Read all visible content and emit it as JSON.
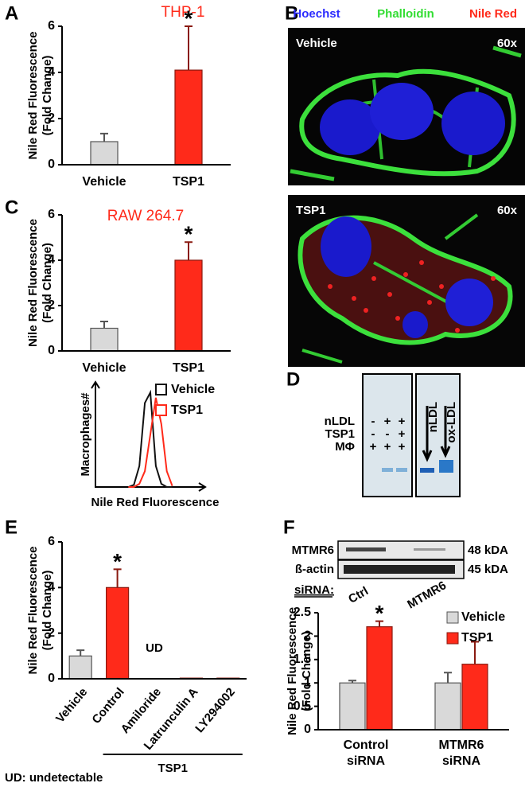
{
  "chart_data": [
    {
      "type": "bar",
      "panel": "A",
      "title": "THP-1",
      "title_color": "#ff2a1a",
      "ylabel": [
        "Nile Red Fluorescence",
        "(Fold Change)"
      ],
      "categories": [
        "Vehicle",
        "TSP1"
      ],
      "values": [
        1,
        4.1
      ],
      "errors": [
        0.35,
        1.9
      ],
      "colors": [
        "#d9d9d9",
        "#ff2a1a"
      ],
      "ylim": [
        0,
        6
      ],
      "yticks": [
        0,
        2,
        4,
        6
      ],
      "annotations": [
        {
          "text": "*",
          "category": 1
        }
      ]
    },
    {
      "type": "bar",
      "panel": "C",
      "title": "RAW 264.7",
      "title_color": "#ff2a1a",
      "ylabel": [
        "Nile Red Fluorescence",
        "(Fold Change)"
      ],
      "categories": [
        "Vehicle",
        "TSP1"
      ],
      "values": [
        1,
        4.0
      ],
      "errors": [
        0.3,
        0.8
      ],
      "colors": [
        "#d9d9d9",
        "#ff2a1a"
      ],
      "ylim": [
        0,
        6
      ],
      "yticks": [
        0,
        2,
        4,
        6
      ],
      "annotations": [
        {
          "text": "*",
          "category": 1
        }
      ]
    },
    {
      "type": "line",
      "xlabel": "Nile Red Fluorescence",
      "ylabel": "Macrophages#",
      "x": [
        3,
        3.5,
        4,
        4.5,
        5,
        5.5,
        6,
        6.5,
        7
      ],
      "xlim": [
        0,
        10
      ],
      "ylim": [
        0,
        10
      ],
      "series": [
        {
          "name": "Vehicle",
          "color": "#111111",
          "values": [
            0,
            0.2,
            2,
            8,
            9,
            2,
            0.3,
            0,
            0
          ]
        },
        {
          "name": "TSP1",
          "color": "#ff2a1a",
          "values": [
            0,
            0,
            0.3,
            1.5,
            5,
            8.5,
            6,
            1.5,
            0.1
          ]
        }
      ]
    },
    {
      "type": "bar",
      "panel": "E",
      "ylabel": [
        "Nile Red Fluorescence",
        "(Fold Change)"
      ],
      "categories": [
        "Vehicle",
        "Control",
        "Amiloride",
        "Latrunculin A",
        "LY294002"
      ],
      "values": [
        1,
        4.0,
        null,
        0.03,
        0.03
      ],
      "errors": [
        0.25,
        0.8,
        null,
        null,
        null
      ],
      "colors": [
        "#d9d9d9",
        "#ff2a1a",
        "#ff2a1a",
        "#ff2a1a",
        "#ff2a1a"
      ],
      "ylim": [
        0,
        6
      ],
      "yticks": [
        0,
        2,
        4,
        6
      ],
      "annotations": [
        {
          "text": "*",
          "category": 1
        },
        {
          "text": "UD",
          "category": 2
        }
      ],
      "group": {
        "label": "TSP1",
        "categories": [
          1,
          2,
          3,
          4
        ]
      }
    },
    {
      "type": "bar",
      "panel": "F",
      "ylabel": [
        "Nile Red Fluorescence",
        "(Fold Change)"
      ],
      "categories": [
        [
          "Control",
          "siRNA"
        ],
        [
          "MTMR6",
          "siRNA"
        ]
      ],
      "series": [
        {
          "name": "Vehicle",
          "color": "#d9d9d9",
          "values": [
            1,
            1
          ],
          "errors": [
            0.05,
            0.22
          ]
        },
        {
          "name": "TSP1",
          "color": "#ff2a1a",
          "values": [
            2.2,
            1.4
          ],
          "errors": [
            0.12,
            0.48
          ]
        }
      ],
      "ylim": [
        0,
        2.5
      ],
      "yticks": [
        0,
        0.5,
        1,
        1.5,
        2,
        2.5
      ],
      "annotations": [
        {
          "text": "*",
          "category": 0,
          "series": 1
        }
      ]
    }
  ],
  "micrographs": {
    "panel": "B",
    "channels": [
      {
        "name": "Hoechst",
        "color": "#2b2bff"
      },
      {
        "name": "Phalloidin",
        "color": "#33dd33"
      },
      {
        "name": "Nile Red",
        "color": "#ff2a1a"
      }
    ],
    "images": [
      {
        "label": "Vehicle",
        "magnification": "60x"
      },
      {
        "label": "TSP1",
        "magnification": "60x"
      }
    ]
  },
  "gel": {
    "panel": "D",
    "rows": [
      {
        "label": "nLDL",
        "signs": [
          "-",
          "+",
          "+"
        ]
      },
      {
        "label": "TSP1",
        "signs": [
          "-",
          "-",
          "+"
        ]
      },
      {
        "label": "MΦ",
        "signs": [
          "+",
          "+",
          "+"
        ]
      }
    ],
    "markers": [
      "nLDL",
      "ox-LDL"
    ]
  },
  "blot": {
    "rows": [
      {
        "label": "MTMR6",
        "size": "48 kDA"
      },
      {
        "label": "ß-actin",
        "size": "45 kDA"
      }
    ],
    "lane_title": "siRNA:",
    "lanes": [
      "Ctrl",
      "MTMR6"
    ]
  },
  "footnote": "UD: undetectable"
}
